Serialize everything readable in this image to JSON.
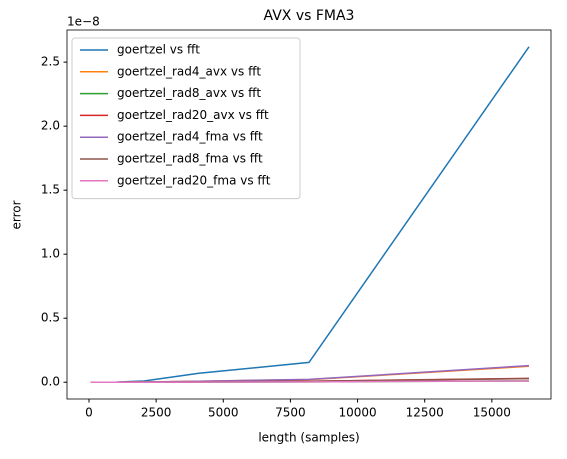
{
  "chart_data": {
    "type": "line",
    "title": "AVX vs FMA3",
    "xlabel": "length (samples)",
    "ylabel": "error",
    "y_offset_label": "1e−8",
    "x": [
      64,
      128,
      256,
      512,
      1024,
      2048,
      4096,
      8192,
      16384
    ],
    "series": [
      {
        "name": "goertzel vs fft",
        "color": "#1f77b4",
        "values": [
          0,
          0,
          0,
          0,
          0.001,
          0.01,
          0.07,
          0.155,
          2.62
        ]
      },
      {
        "name": "goertzel_rad4_avx vs fft",
        "color": "#ff7f0e",
        "values": [
          0,
          0,
          0,
          0,
          0,
          0.002,
          0.008,
          0.02,
          0.125
        ]
      },
      {
        "name": "goertzel_rad8_avx vs fft",
        "color": "#2ca02c",
        "values": [
          0,
          0,
          0,
          0,
          0,
          0,
          0.001,
          0.003,
          0.01
        ]
      },
      {
        "name": "goertzel_rad20_avx vs fft",
        "color": "#d62728",
        "values": [
          0,
          0,
          0,
          0,
          0,
          0.001,
          0.003,
          0.008,
          0.03
        ]
      },
      {
        "name": "goertzel_rad4_fma vs fft",
        "color": "#9467bd",
        "values": [
          0,
          0,
          0,
          0,
          0,
          0.002,
          0.008,
          0.022,
          0.13
        ]
      },
      {
        "name": "goertzel_rad8_fma vs fft",
        "color": "#8c564b",
        "values": [
          0,
          0,
          0,
          0,
          0,
          0.001,
          0.003,
          0.008,
          0.028
        ]
      },
      {
        "name": "goertzel_rad20_fma vs fft",
        "color": "#e377c2",
        "values": [
          0,
          0,
          0,
          0,
          0,
          0,
          0.001,
          0.003,
          0.01
        ]
      }
    ],
    "xlim": [
      -819.2,
      17203.2
    ],
    "xticks": [
      0,
      2500,
      5000,
      7500,
      10000,
      12500,
      15000
    ],
    "ylim": [
      -0.131,
      2.751
    ],
    "yticks": [
      {
        "value": 0,
        "label": "0.0"
      },
      0.5,
      {
        "value": 1,
        "label": "1.0"
      },
      1.5,
      {
        "value": 2,
        "label": "2.0"
      },
      2.5
    ],
    "legend": "upper left",
    "grid": false
  }
}
